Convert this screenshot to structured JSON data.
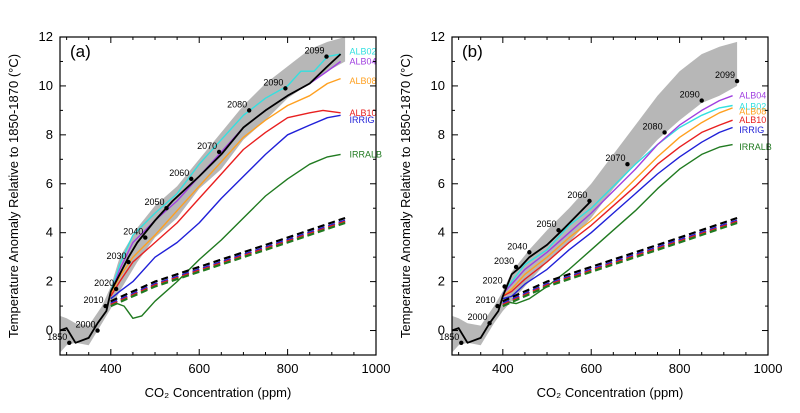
{
  "chart_data": [
    {
      "type": "line",
      "panel_label": "(a)",
      "xlabel": "CO₂ Concentration (ppm)",
      "ylabel": "Temperature Anomaly Relative to 1850-1870 (°C)",
      "xlim": [
        285,
        1000
      ],
      "ylim": [
        -1,
        12
      ],
      "xticks": [
        "400",
        "600",
        "800",
        "1000"
      ],
      "yticks": [
        "0",
        "2",
        "4",
        "6",
        "8",
        "10",
        "12"
      ],
      "grid": false,
      "legend": "none",
      "envelope": {
        "color": "#aaaaaa",
        "x": [
          285,
          300,
          320,
          350,
          380,
          400,
          420,
          460,
          500,
          550,
          600,
          650,
          700,
          750,
          800,
          850,
          890,
          930
        ],
        "lower": [
          -0.9,
          -0.6,
          -0.5,
          -0.6,
          0.3,
          0.9,
          1.6,
          2.8,
          3.8,
          4.6,
          5.8,
          6.6,
          7.8,
          8.6,
          9.5,
          10.1,
          10.6,
          11.0
        ],
        "upper": [
          0.6,
          0.5,
          0.3,
          0.2,
          1.0,
          1.8,
          3.0,
          4.2,
          5.1,
          5.9,
          7.0,
          8.1,
          9.2,
          10.1,
          10.8,
          11.5,
          11.8,
          12.0
        ]
      },
      "series": [
        {
          "name": "ALB02",
          "color": "#33e0e0",
          "dashed": false,
          "x": [
            400,
            420,
            450,
            500,
            550,
            600,
            650,
            700,
            750,
            800,
            830,
            860,
            890,
            920
          ],
          "y": [
            1.6,
            2.7,
            3.9,
            4.8,
            5.6,
            6.8,
            7.8,
            8.8,
            9.5,
            10.0,
            10.6,
            10.6,
            11.2,
            11.3
          ]
        },
        {
          "name": "ALB04",
          "color": "#a040e0",
          "dashed": false,
          "x": [
            400,
            420,
            450,
            500,
            550,
            600,
            650,
            700,
            750,
            800,
            850,
            890,
            920
          ],
          "y": [
            1.5,
            2.5,
            3.6,
            4.5,
            5.3,
            6.3,
            7.3,
            8.3,
            9.0,
            9.6,
            10.1,
            10.6,
            11.0
          ]
        },
        {
          "name": "ALB08",
          "color": "#ffa020",
          "dashed": false,
          "x": [
            400,
            420,
            450,
            500,
            550,
            600,
            650,
            700,
            750,
            800,
            850,
            890,
            920
          ],
          "y": [
            1.5,
            2.2,
            3.0,
            3.9,
            4.9,
            5.9,
            6.9,
            7.9,
            8.6,
            9.2,
            9.6,
            10.1,
            10.3
          ]
        },
        {
          "name": "ALB10",
          "color": "#e82020",
          "dashed": false,
          "x": [
            400,
            420,
            450,
            500,
            550,
            600,
            650,
            700,
            750,
            800,
            850,
            880,
            920
          ],
          "y": [
            1.4,
            2.0,
            2.8,
            3.6,
            4.4,
            5.4,
            6.4,
            7.4,
            8.1,
            8.7,
            8.9,
            9.0,
            8.9
          ]
        },
        {
          "name": "IRRIG",
          "color": "#2020d8",
          "dashed": false,
          "x": [
            400,
            420,
            450,
            500,
            550,
            600,
            650,
            700,
            750,
            800,
            850,
            890,
            920
          ],
          "y": [
            1.3,
            1.6,
            2.0,
            3.0,
            3.6,
            4.4,
            5.4,
            6.3,
            7.2,
            8.0,
            8.4,
            8.7,
            8.8
          ]
        },
        {
          "name": "IRRALB",
          "color": "#207a20",
          "dashed": false,
          "x": [
            400,
            430,
            450,
            470,
            500,
            550,
            600,
            650,
            700,
            750,
            800,
            850,
            890,
            920
          ],
          "y": [
            1.2,
            1.0,
            0.5,
            0.6,
            1.2,
            2.0,
            2.9,
            3.7,
            4.6,
            5.5,
            6.2,
            6.8,
            7.1,
            7.2
          ]
        },
        {
          "name": "",
          "color": "#000000",
          "dashed": false,
          "x": [
            285,
            300,
            320,
            350,
            370,
            390,
            400,
            420,
            440,
            460,
            500,
            540,
            600,
            650,
            700,
            750,
            800,
            850,
            890,
            920
          ],
          "y": [
            0.0,
            0.1,
            -0.5,
            -0.3,
            0.3,
            0.8,
            1.6,
            2.3,
            3.0,
            3.6,
            4.5,
            5.3,
            6.3,
            7.2,
            8.3,
            9.0,
            9.6,
            10.1,
            10.8,
            11.3
          ]
        },
        {
          "name": "",
          "color": "#000000",
          "dashed": true,
          "x": [
            400,
            500,
            600,
            700,
            800,
            930
          ],
          "y": [
            1.2,
            2.0,
            2.6,
            3.2,
            3.8,
            4.6
          ]
        },
        {
          "name": "",
          "color": "#2020d8",
          "dashed": true,
          "x": [
            400,
            500,
            600,
            700,
            800,
            930
          ],
          "y": [
            1.1,
            1.9,
            2.5,
            3.1,
            3.7,
            4.5
          ]
        },
        {
          "name": "",
          "color": "#e82020",
          "dashed": true,
          "x": [
            400,
            500,
            600,
            700,
            800,
            930
          ],
          "y": [
            1.05,
            1.85,
            2.45,
            3.05,
            3.65,
            4.45
          ]
        },
        {
          "name": "",
          "color": "#207a20",
          "dashed": true,
          "x": [
            400,
            500,
            600,
            700,
            800,
            930
          ],
          "y": [
            1.0,
            1.8,
            2.4,
            3.0,
            3.6,
            4.4
          ]
        }
      ],
      "year_labels": [
        {
          "text": "1850",
          "x": 306,
          "y": -0.5
        },
        {
          "text": "2000",
          "x": 370,
          "y": 0.0
        },
        {
          "text": "2010",
          "x": 388,
          "y": 1.0
        },
        {
          "text": "2020",
          "x": 412,
          "y": 1.7
        },
        {
          "text": "2030",
          "x": 440,
          "y": 2.8
        },
        {
          "text": "2040",
          "x": 478,
          "y": 3.8
        },
        {
          "text": "2050",
          "x": 526,
          "y": 5.0
        },
        {
          "text": "2060",
          "x": 582,
          "y": 6.2
        },
        {
          "text": "2070",
          "x": 645,
          "y": 7.3
        },
        {
          "text": "2080",
          "x": 713,
          "y": 9.0
        },
        {
          "text": "2090",
          "x": 795,
          "y": 9.9
        },
        {
          "text": "2099",
          "x": 888,
          "y": 11.2
        }
      ],
      "series_labels": [
        {
          "text": "ALB02",
          "color": "#33e0e0",
          "x": 940,
          "y": 11.4
        },
        {
          "text": "ALB04",
          "color": "#a040e0",
          "x": 940,
          "y": 11.0
        },
        {
          "text": "ALB08",
          "color": "#ffa020",
          "x": 940,
          "y": 10.2
        },
        {
          "text": "ALB10",
          "color": "#e82020",
          "x": 940,
          "y": 8.9
        },
        {
          "text": "IRRIG",
          "color": "#2020d8",
          "x": 940,
          "y": 8.6
        },
        {
          "text": "IRRALB",
          "color": "#207a20",
          "x": 940,
          "y": 7.2
        }
      ]
    },
    {
      "type": "line",
      "panel_label": "(b)",
      "xlabel": "CO₂ Concentration (ppm)",
      "ylabel": "Temperature Anomaly Relative to 1850-1870 (°C)",
      "xlim": [
        285,
        1000
      ],
      "ylim": [
        -1,
        12
      ],
      "xticks": [
        "400",
        "600",
        "800",
        "1000"
      ],
      "yticks": [
        "0",
        "2",
        "4",
        "6",
        "8",
        "10",
        "12"
      ],
      "grid": false,
      "legend": "none",
      "envelope": {
        "color": "#aaaaaa",
        "x": [
          285,
          300,
          320,
          350,
          380,
          400,
          420,
          460,
          500,
          550,
          600,
          650,
          700,
          750,
          800,
          850,
          890,
          930
        ],
        "lower": [
          -0.9,
          -0.6,
          -0.5,
          -0.6,
          0.3,
          0.8,
          1.2,
          2.0,
          2.8,
          3.6,
          4.6,
          5.8,
          6.8,
          7.8,
          8.6,
          9.3,
          9.6,
          10.0
        ],
        "upper": [
          0.6,
          0.5,
          0.3,
          0.2,
          1.0,
          1.6,
          2.4,
          3.3,
          4.1,
          5.0,
          6.0,
          7.2,
          8.4,
          9.6,
          10.6,
          11.3,
          11.6,
          11.8
        ]
      },
      "series": [
        {
          "name": "ALB02",
          "color": "#33e0e0",
          "dashed": false,
          "x": [
            400,
            420,
            450,
            500,
            550,
            600,
            650,
            700,
            750,
            800,
            850,
            890,
            920
          ],
          "y": [
            1.5,
            2.0,
            2.7,
            3.3,
            4.3,
            5.0,
            5.9,
            6.8,
            7.6,
            8.3,
            8.8,
            9.1,
            9.2
          ]
        },
        {
          "name": "ALB04",
          "color": "#a040e0",
          "dashed": false,
          "x": [
            400,
            420,
            450,
            500,
            550,
            600,
            650,
            700,
            750,
            800,
            850,
            890,
            920
          ],
          "y": [
            1.5,
            1.9,
            2.5,
            3.2,
            4.0,
            4.8,
            5.7,
            6.6,
            7.6,
            8.4,
            9.0,
            9.4,
            9.6
          ]
        },
        {
          "name": "ALB08",
          "color": "#ffa020",
          "dashed": false,
          "x": [
            400,
            420,
            450,
            500,
            550,
            600,
            650,
            700,
            750,
            800,
            850,
            890,
            920
          ],
          "y": [
            1.4,
            1.7,
            2.3,
            3.0,
            3.8,
            4.5,
            5.3,
            6.2,
            7.1,
            7.9,
            8.5,
            8.9,
            9.1
          ]
        },
        {
          "name": "ALB10",
          "color": "#e82020",
          "dashed": false,
          "x": [
            400,
            420,
            450,
            500,
            550,
            600,
            650,
            700,
            750,
            800,
            850,
            890,
            920
          ],
          "y": [
            1.4,
            1.6,
            2.1,
            2.8,
            3.6,
            4.3,
            5.1,
            5.9,
            6.8,
            7.5,
            8.1,
            8.4,
            8.6
          ]
        },
        {
          "name": "IRRIG",
          "color": "#2020d8",
          "dashed": false,
          "x": [
            400,
            420,
            450,
            500,
            550,
            600,
            650,
            700,
            750,
            800,
            850,
            890,
            920
          ],
          "y": [
            1.3,
            1.4,
            1.9,
            2.5,
            3.3,
            4.0,
            4.8,
            5.6,
            6.4,
            7.1,
            7.7,
            8.1,
            8.3
          ]
        },
        {
          "name": "IRRALB",
          "color": "#207a20",
          "dashed": false,
          "x": [
            400,
            430,
            460,
            500,
            550,
            600,
            650,
            700,
            750,
            800,
            850,
            890,
            920
          ],
          "y": [
            1.2,
            1.1,
            1.3,
            1.8,
            2.5,
            3.3,
            4.1,
            4.9,
            5.8,
            6.6,
            7.2,
            7.5,
            7.6
          ]
        },
        {
          "name": "",
          "color": "#000000",
          "dashed": false,
          "x": [
            285,
            300,
            320,
            350,
            370,
            390,
            400,
            420,
            440,
            460,
            500,
            540,
            600
          ],
          "y": [
            0.0,
            0.1,
            -0.5,
            -0.3,
            0.3,
            0.8,
            1.4,
            2.3,
            2.6,
            3.0,
            3.5,
            4.2,
            5.3
          ]
        },
        {
          "name": "",
          "color": "#000000",
          "dashed": true,
          "x": [
            400,
            500,
            600,
            700,
            800,
            930
          ],
          "y": [
            1.2,
            2.0,
            2.6,
            3.2,
            3.8,
            4.6
          ]
        },
        {
          "name": "",
          "color": "#2020d8",
          "dashed": true,
          "x": [
            400,
            500,
            600,
            700,
            800,
            930
          ],
          "y": [
            1.1,
            1.9,
            2.5,
            3.1,
            3.7,
            4.5
          ]
        },
        {
          "name": "",
          "color": "#e82020",
          "dashed": true,
          "x": [
            400,
            500,
            600,
            700,
            800,
            930
          ],
          "y": [
            1.05,
            1.85,
            2.45,
            3.05,
            3.65,
            4.45
          ]
        },
        {
          "name": "",
          "color": "#207a20",
          "dashed": true,
          "x": [
            400,
            500,
            600,
            700,
            800,
            930
          ],
          "y": [
            1.0,
            1.8,
            2.4,
            3.0,
            3.6,
            4.4
          ]
        }
      ],
      "year_labels": [
        {
          "text": "1850",
          "x": 306,
          "y": -0.5
        },
        {
          "text": "2000",
          "x": 370,
          "y": 0.3
        },
        {
          "text": "2010",
          "x": 388,
          "y": 1.0
        },
        {
          "text": "2020",
          "x": 404,
          "y": 1.8
        },
        {
          "text": "2030",
          "x": 430,
          "y": 2.6
        },
        {
          "text": "2040",
          "x": 460,
          "y": 3.2
        },
        {
          "text": "2050",
          "x": 526,
          "y": 4.1
        },
        {
          "text": "2060",
          "x": 596,
          "y": 5.3
        },
        {
          "text": "2070",
          "x": 682,
          "y": 6.8
        },
        {
          "text": "2080",
          "x": 766,
          "y": 8.1
        },
        {
          "text": "2090",
          "x": 850,
          "y": 9.4
        },
        {
          "text": "2099",
          "x": 930,
          "y": 10.2
        }
      ],
      "series_labels": [
        {
          "text": "ALB04",
          "color": "#a040e0",
          "x": 935,
          "y": 9.6
        },
        {
          "text": "ALB02",
          "color": "#33e0e0",
          "x": 935,
          "y": 9.15
        },
        {
          "text": "ALB08",
          "color": "#ffa020",
          "x": 935,
          "y": 8.95
        },
        {
          "text": "ALB10",
          "color": "#e82020",
          "x": 935,
          "y": 8.6
        },
        {
          "text": "IRRIG",
          "color": "#2020d8",
          "x": 935,
          "y": 8.2
        },
        {
          "text": "IRRALB",
          "color": "#207a20",
          "x": 935,
          "y": 7.5
        }
      ]
    }
  ]
}
